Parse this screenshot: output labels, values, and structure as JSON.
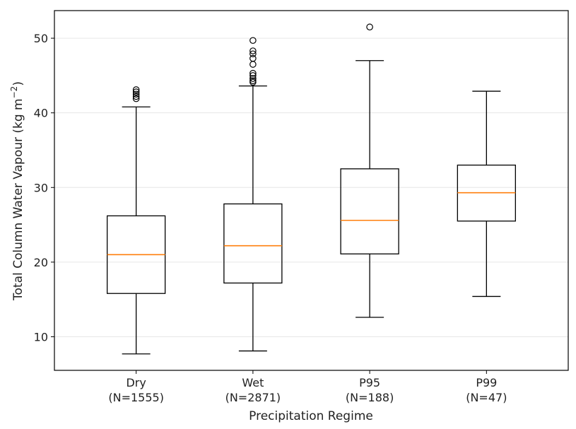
{
  "chart_data": {
    "type": "box",
    "title": "",
    "xlabel": "Precipitation Regime",
    "ylabel": "Total Column Water Vapour (kg m",
    "ylabel_superscript": "−2",
    "ylabel_close": ")",
    "ylim": [
      5.5,
      53.7
    ],
    "yticks": [
      10,
      20,
      30,
      40,
      50
    ],
    "grid": "horizontal",
    "colors": {
      "box": "#000000",
      "median": "#ff7f0e",
      "grid": "#e6e6e6"
    },
    "categories": [
      {
        "name": "Dry",
        "n_label": "(N=1555)",
        "whisker_low": 7.7,
        "q1": 15.8,
        "median": 21.0,
        "q3": 26.2,
        "whisker_high": 40.8,
        "outliers": [
          41.9,
          42.2,
          42.5,
          42.8,
          43.1
        ]
      },
      {
        "name": "Wet",
        "n_label": "(N=2871)",
        "whisker_low": 8.1,
        "q1": 17.2,
        "median": 22.2,
        "q3": 27.8,
        "whisker_high": 43.6,
        "outliers": [
          44.1,
          44.3,
          44.6,
          45.0,
          45.3,
          46.5,
          47.3,
          47.9,
          48.3,
          49.7
        ]
      },
      {
        "name": "P95",
        "n_label": "(N=188)",
        "whisker_low": 12.6,
        "q1": 21.1,
        "median": 25.6,
        "q3": 32.5,
        "whisker_high": 47.0,
        "outliers": [
          51.5
        ]
      },
      {
        "name": "P99",
        "n_label": "(N=47)",
        "whisker_low": 15.4,
        "q1": 25.5,
        "median": 29.3,
        "q3": 33.0,
        "whisker_high": 42.9,
        "outliers": []
      }
    ]
  }
}
